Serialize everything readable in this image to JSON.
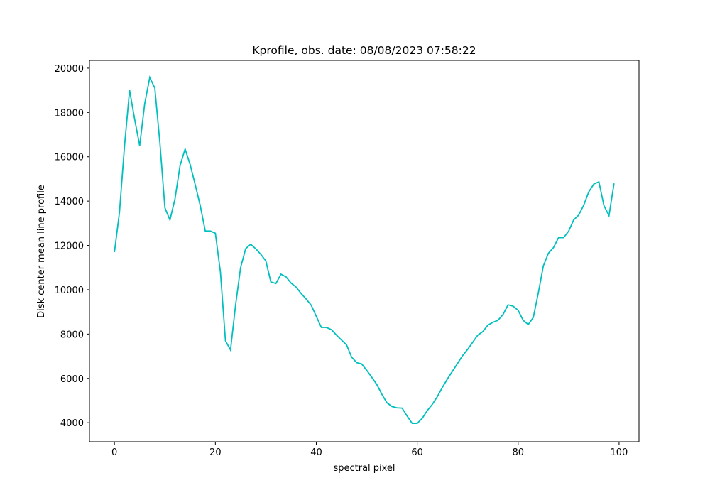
{
  "chart_data": {
    "type": "line",
    "title": "Kprofile, obs. date: 08/08/2023 07:58:22",
    "xlabel": "spectral pixel",
    "ylabel": "Disk center mean line profile",
    "x": [
      0,
      1,
      2,
      3,
      4,
      5,
      6,
      7,
      8,
      9,
      10,
      11,
      12,
      13,
      14,
      15,
      16,
      17,
      18,
      19,
      20,
      21,
      22,
      23,
      24,
      25,
      26,
      27,
      28,
      29,
      30,
      31,
      32,
      33,
      34,
      35,
      36,
      37,
      38,
      39,
      40,
      41,
      42,
      43,
      44,
      45,
      46,
      47,
      48,
      49,
      50,
      51,
      52,
      53,
      54,
      55,
      56,
      57,
      58,
      59,
      60,
      61,
      62,
      63,
      64,
      65,
      66,
      67,
      68,
      69,
      70,
      71,
      72,
      73,
      74,
      75,
      76,
      77,
      78,
      79,
      80,
      81,
      82,
      83,
      84,
      85,
      86,
      87,
      88,
      89,
      90,
      91,
      92,
      93,
      94,
      95,
      96,
      97,
      98,
      99
    ],
    "series": [
      {
        "color": "#00bfbf",
        "values": [
          11700,
          13500,
          16500,
          19000,
          17700,
          16500,
          18400,
          19580,
          19100,
          16650,
          13700,
          13150,
          14100,
          15600,
          16350,
          15650,
          14750,
          13800,
          12650,
          12650,
          12550,
          10800,
          7700,
          7280,
          9300,
          11000,
          11850,
          12050,
          11850,
          11600,
          11300,
          10350,
          10280,
          10700,
          10580,
          10300,
          10120,
          9830,
          9580,
          9300,
          8800,
          8300,
          8300,
          8200,
          7950,
          7730,
          7510,
          6960,
          6710,
          6650,
          6360,
          6050,
          5720,
          5280,
          4900,
          4730,
          4670,
          4660,
          4300,
          3970,
          3970,
          4200,
          4550,
          4830,
          5180,
          5600,
          5980,
          6330,
          6680,
          7030,
          7310,
          7630,
          7950,
          8110,
          8400,
          8530,
          8620,
          8880,
          9320,
          9260,
          9070,
          8620,
          8430,
          8750,
          9860,
          11080,
          11650,
          11900,
          12350,
          12350,
          12640,
          13150,
          13370,
          13820,
          14420,
          14770,
          14870,
          13800,
          13340,
          14800
        ]
      }
    ],
    "xlim": [
      -4.95,
      103.95
    ],
    "xticks": [
      0,
      20,
      40,
      60,
      80,
      100
    ],
    "ylim": [
      3140,
      20350
    ],
    "yticks": [
      4000,
      6000,
      8000,
      10000,
      12000,
      14000,
      16000,
      18000,
      20000
    ]
  }
}
